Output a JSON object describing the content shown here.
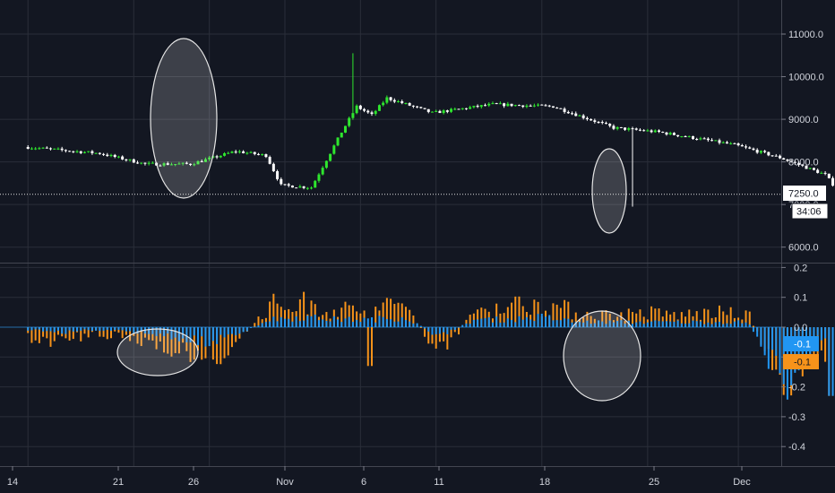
{
  "colors": {
    "background": "#131722",
    "grid": "#2a2e39",
    "up": "#2ee62e",
    "down": "#ffffff",
    "osc_blue": "#2196f3",
    "osc_orange": "#f7931a",
    "text": "#d1d4dc",
    "annotation": "#e6e6e6"
  },
  "price_axis": {
    "ticks": [
      "11000.0",
      "10000.0",
      "9000.0",
      "8000.0",
      "7000.0",
      "6000.0"
    ],
    "current_price_label": "7250.0",
    "countdown_label": "34:06"
  },
  "osc_axis": {
    "ticks": [
      "0.2",
      "0.1",
      "0.0",
      "-0.1",
      "-0.2",
      "-0.3",
      "-0.4"
    ],
    "blue_tag": "-0.1",
    "orange_tag": "-0.1"
  },
  "time_axis": {
    "ticks": [
      "14",
      "21",
      "26",
      "Nov",
      "6",
      "11",
      "18",
      "25",
      "Dec"
    ]
  },
  "chart_data": [
    {
      "type": "candlestick",
      "title": "",
      "ylim": [
        5500,
        11600
      ],
      "current_price": 7250,
      "x_range_days": [
        -17,
        38
      ],
      "key_points": [
        {
          "day": -17,
          "price": 8350
        },
        {
          "day": -12,
          "price": 8200
        },
        {
          "day": -9,
          "price": 7950
        },
        {
          "day": -6,
          "price": 7950
        },
        {
          "day": -3,
          "price": 8250
        },
        {
          "day": -1,
          "price": 8150
        },
        {
          "day": 0,
          "price": 7450
        },
        {
          "day": 2,
          "price": 7400
        },
        {
          "day": 4,
          "price": 8700
        },
        {
          "day": 5,
          "price": 9300
        },
        {
          "day": 6,
          "price": 9100
        },
        {
          "day": 7,
          "price": 9500
        },
        {
          "day": 10,
          "price": 9150
        },
        {
          "day": 14,
          "price": 9350
        },
        {
          "day": 18,
          "price": 9300
        },
        {
          "day": 22,
          "price": 8800
        },
        {
          "day": 25,
          "price": 8700
        },
        {
          "day": 30,
          "price": 8400
        },
        {
          "day": 33,
          "price": 8100
        },
        {
          "day": 36,
          "price": 7700
        },
        {
          "day": 37,
          "price": 7250
        }
      ],
      "spikes": [
        {
          "day": 4.5,
          "high": 10550
        },
        {
          "day": 23,
          "low": 6950
        }
      ]
    },
    {
      "type": "bar",
      "title": "",
      "ylim": [
        -0.47,
        0.22
      ],
      "series": [
        {
          "color": "#f7931a",
          "values_summary": [
            -0.04,
            -0.06,
            -0.03,
            -0.05,
            -0.07,
            -0.13,
            -0.09,
            0.09,
            0.1,
            0.07,
            0.08,
            0.1,
            -0.13,
            0.07,
            0.09,
            0.1,
            0.06,
            0.05,
            0.06,
            0.05,
            0.06,
            0.05,
            -0.23,
            -0.09,
            -0.12
          ]
        },
        {
          "color": "#2196f3",
          "values_summary": [
            -0.01,
            -0.02,
            -0.01,
            -0.02,
            -0.03,
            -0.06,
            -0.04,
            0.03,
            0.04,
            0.03,
            0.03,
            0.04,
            -0.04,
            0.03,
            0.03,
            0.04,
            0.02,
            0.02,
            0.02,
            0.02,
            0.02,
            0.02,
            -0.23,
            -0.05,
            -0.1
          ]
        }
      ]
    }
  ],
  "annotations": [
    {
      "shape": "ellipse",
      "pane": "price"
    },
    {
      "shape": "ellipse",
      "pane": "price"
    },
    {
      "shape": "ellipse",
      "pane": "oscillator"
    },
    {
      "shape": "ellipse",
      "pane": "oscillator"
    }
  ]
}
